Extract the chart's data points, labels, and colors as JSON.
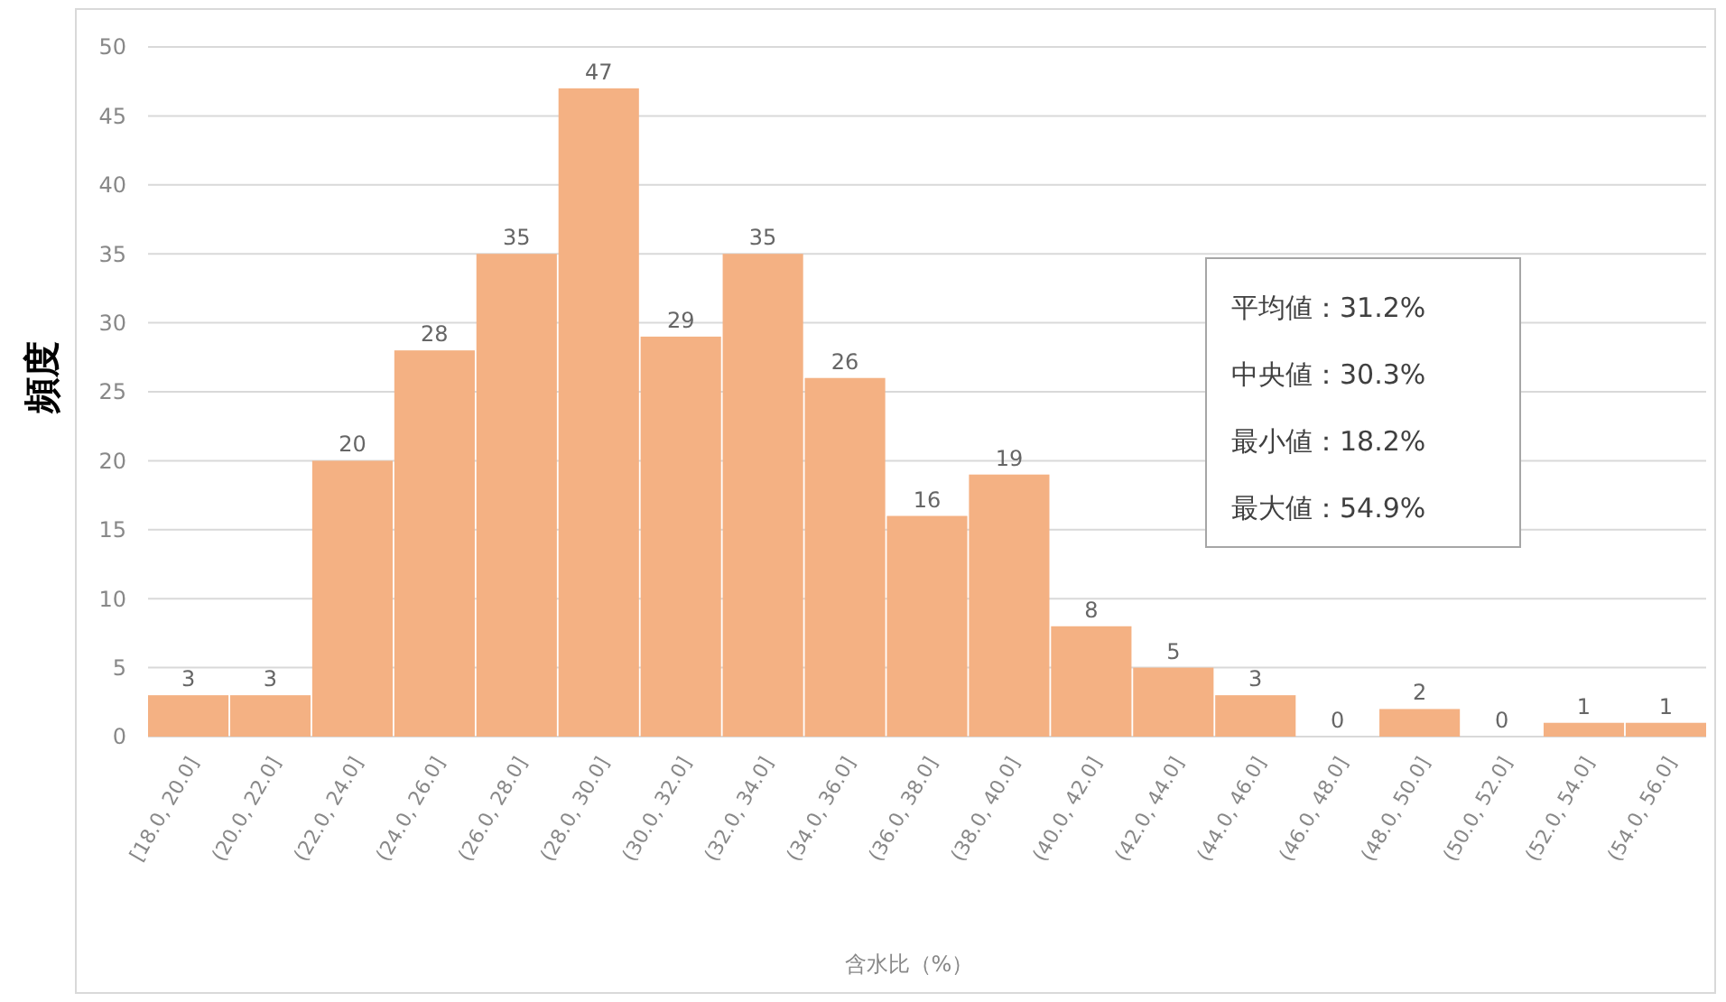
{
  "chart_data": {
    "type": "bar",
    "categories": [
      "[18.0, 20.0]",
      "(20.0, 22.0]",
      "(22.0, 24.0]",
      "(24.0, 26.0]",
      "(26.0, 28.0]",
      "(28.0, 30.0]",
      "(30.0, 32.0]",
      "(32.0, 34.0]",
      "(34.0, 36.0]",
      "(36.0, 38.0]",
      "(38.0, 40.0]",
      "(40.0, 42.0]",
      "(42.0, 44.0]",
      "(44.0, 46.0]",
      "(46.0, 48.0]",
      "(48.0, 50.0]",
      "(50.0, 52.0]",
      "(52.0, 54.0]",
      "(54.0, 56.0]"
    ],
    "values": [
      3,
      3,
      20,
      28,
      35,
      47,
      29,
      35,
      26,
      16,
      19,
      8,
      5,
      3,
      0,
      2,
      0,
      1,
      1
    ],
    "color": "#f4b183",
    "xlabel": "含水比（%）",
    "ylabel": "頻度",
    "ylim": [
      0,
      50
    ],
    "yticks": [
      0,
      5,
      10,
      15,
      20,
      25,
      30,
      35,
      40,
      45,
      50
    ],
    "grid": "y",
    "data_labels": true,
    "annotations": [
      "平均値：31.2%",
      "中央値：30.3%",
      "最小値：18.2%",
      "最大値：54.9%"
    ]
  }
}
